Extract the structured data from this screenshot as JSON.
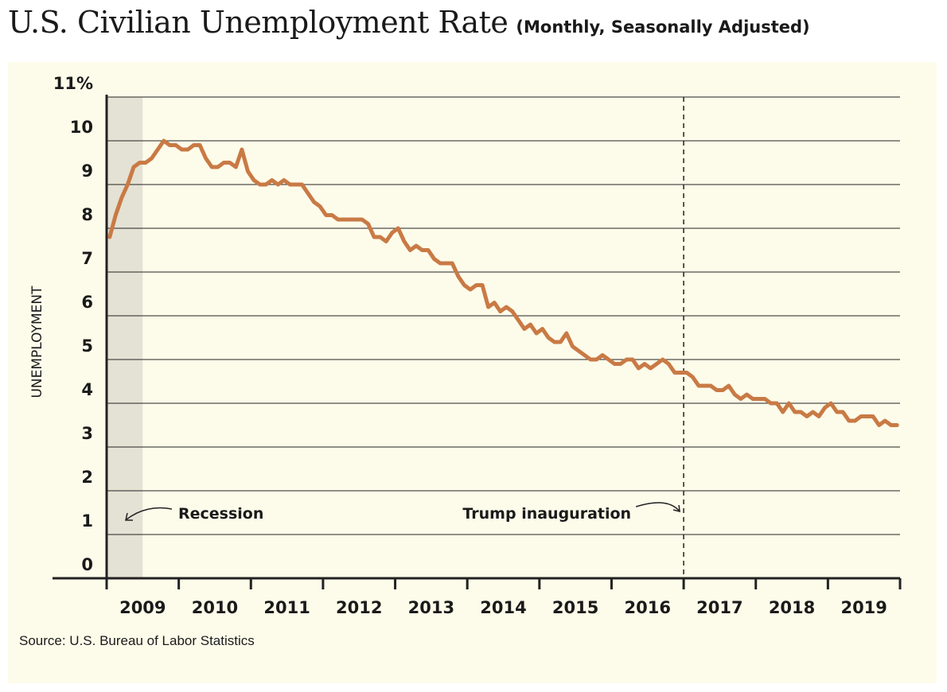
{
  "title": "U.S. Civilian Unemployment Rate",
  "subtitle": "(Monthly, Seasonally Adjusted)",
  "source": "Source: U.S. Bureau of Labor Statistics",
  "colors": {
    "background": "#ffffff",
    "panel": "#fdfcea",
    "line": "#c97a45",
    "recession": "#e4e2d4",
    "grid": "#222222",
    "text": "#1a1a1a"
  },
  "chart_data": {
    "type": "line",
    "title": "U.S. Civilian Unemployment Rate",
    "subtitle": "(Monthly, Seasonally Adjusted)",
    "ylabel": "UNEMPLOYMENT",
    "xlabel": "",
    "ylim": [
      0,
      11
    ],
    "xlim": [
      "2009-01",
      "2019-12"
    ],
    "y_ticks": [
      {
        "value": 0,
        "label": "0"
      },
      {
        "value": 1,
        "label": "1"
      },
      {
        "value": 2,
        "label": "2"
      },
      {
        "value": 3,
        "label": "3"
      },
      {
        "value": 4,
        "label": "4"
      },
      {
        "value": 5,
        "label": "5"
      },
      {
        "value": 6,
        "label": "6"
      },
      {
        "value": 7,
        "label": "7"
      },
      {
        "value": 8,
        "label": "8"
      },
      {
        "value": 9,
        "label": "9"
      },
      {
        "value": 10,
        "label": "10"
      },
      {
        "value": 11,
        "label": "11%"
      }
    ],
    "x_ticks": [
      "2009",
      "2010",
      "2011",
      "2012",
      "2013",
      "2014",
      "2015",
      "2016",
      "2017",
      "2018",
      "2019"
    ],
    "grid": true,
    "series": [
      {
        "start": "2009-01",
        "frequency": "monthly",
        "values": [
          7.8,
          8.3,
          8.7,
          9.0,
          9.4,
          9.5,
          9.5,
          9.6,
          9.8,
          10.0,
          9.9,
          9.9,
          9.8,
          9.8,
          9.9,
          9.9,
          9.6,
          9.4,
          9.4,
          9.5,
          9.5,
          9.4,
          9.8,
          9.3,
          9.1,
          9.0,
          9.0,
          9.1,
          9.0,
          9.1,
          9.0,
          9.0,
          9.0,
          8.8,
          8.6,
          8.5,
          8.3,
          8.3,
          8.2,
          8.2,
          8.2,
          8.2,
          8.2,
          8.1,
          7.8,
          7.8,
          7.7,
          7.9,
          8.0,
          7.7,
          7.5,
          7.6,
          7.5,
          7.5,
          7.3,
          7.2,
          7.2,
          7.2,
          6.9,
          6.7,
          6.6,
          6.7,
          6.7,
          6.2,
          6.3,
          6.1,
          6.2,
          6.1,
          5.9,
          5.7,
          5.8,
          5.6,
          5.7,
          5.5,
          5.4,
          5.4,
          5.6,
          5.3,
          5.2,
          5.1,
          5.0,
          5.0,
          5.1,
          5.0,
          4.9,
          4.9,
          5.0,
          5.0,
          4.8,
          4.9,
          4.8,
          4.9,
          5.0,
          4.9,
          4.7,
          4.7,
          4.7,
          4.6,
          4.4,
          4.4,
          4.4,
          4.3,
          4.3,
          4.4,
          4.2,
          4.1,
          4.2,
          4.1,
          4.1,
          4.1,
          4.0,
          4.0,
          3.8,
          4.0,
          3.8,
          3.8,
          3.7,
          3.8,
          3.7,
          3.9,
          4.0,
          3.8,
          3.8,
          3.6,
          3.6,
          3.7,
          3.7,
          3.7,
          3.5,
          3.6,
          3.5,
          3.5
        ]
      }
    ],
    "shaded_regions": [
      {
        "start": "2009-01",
        "end": "2009-06",
        "label": "Recession"
      }
    ],
    "events": [
      {
        "date": "2017-01",
        "label": "Trump inauguration"
      }
    ]
  }
}
